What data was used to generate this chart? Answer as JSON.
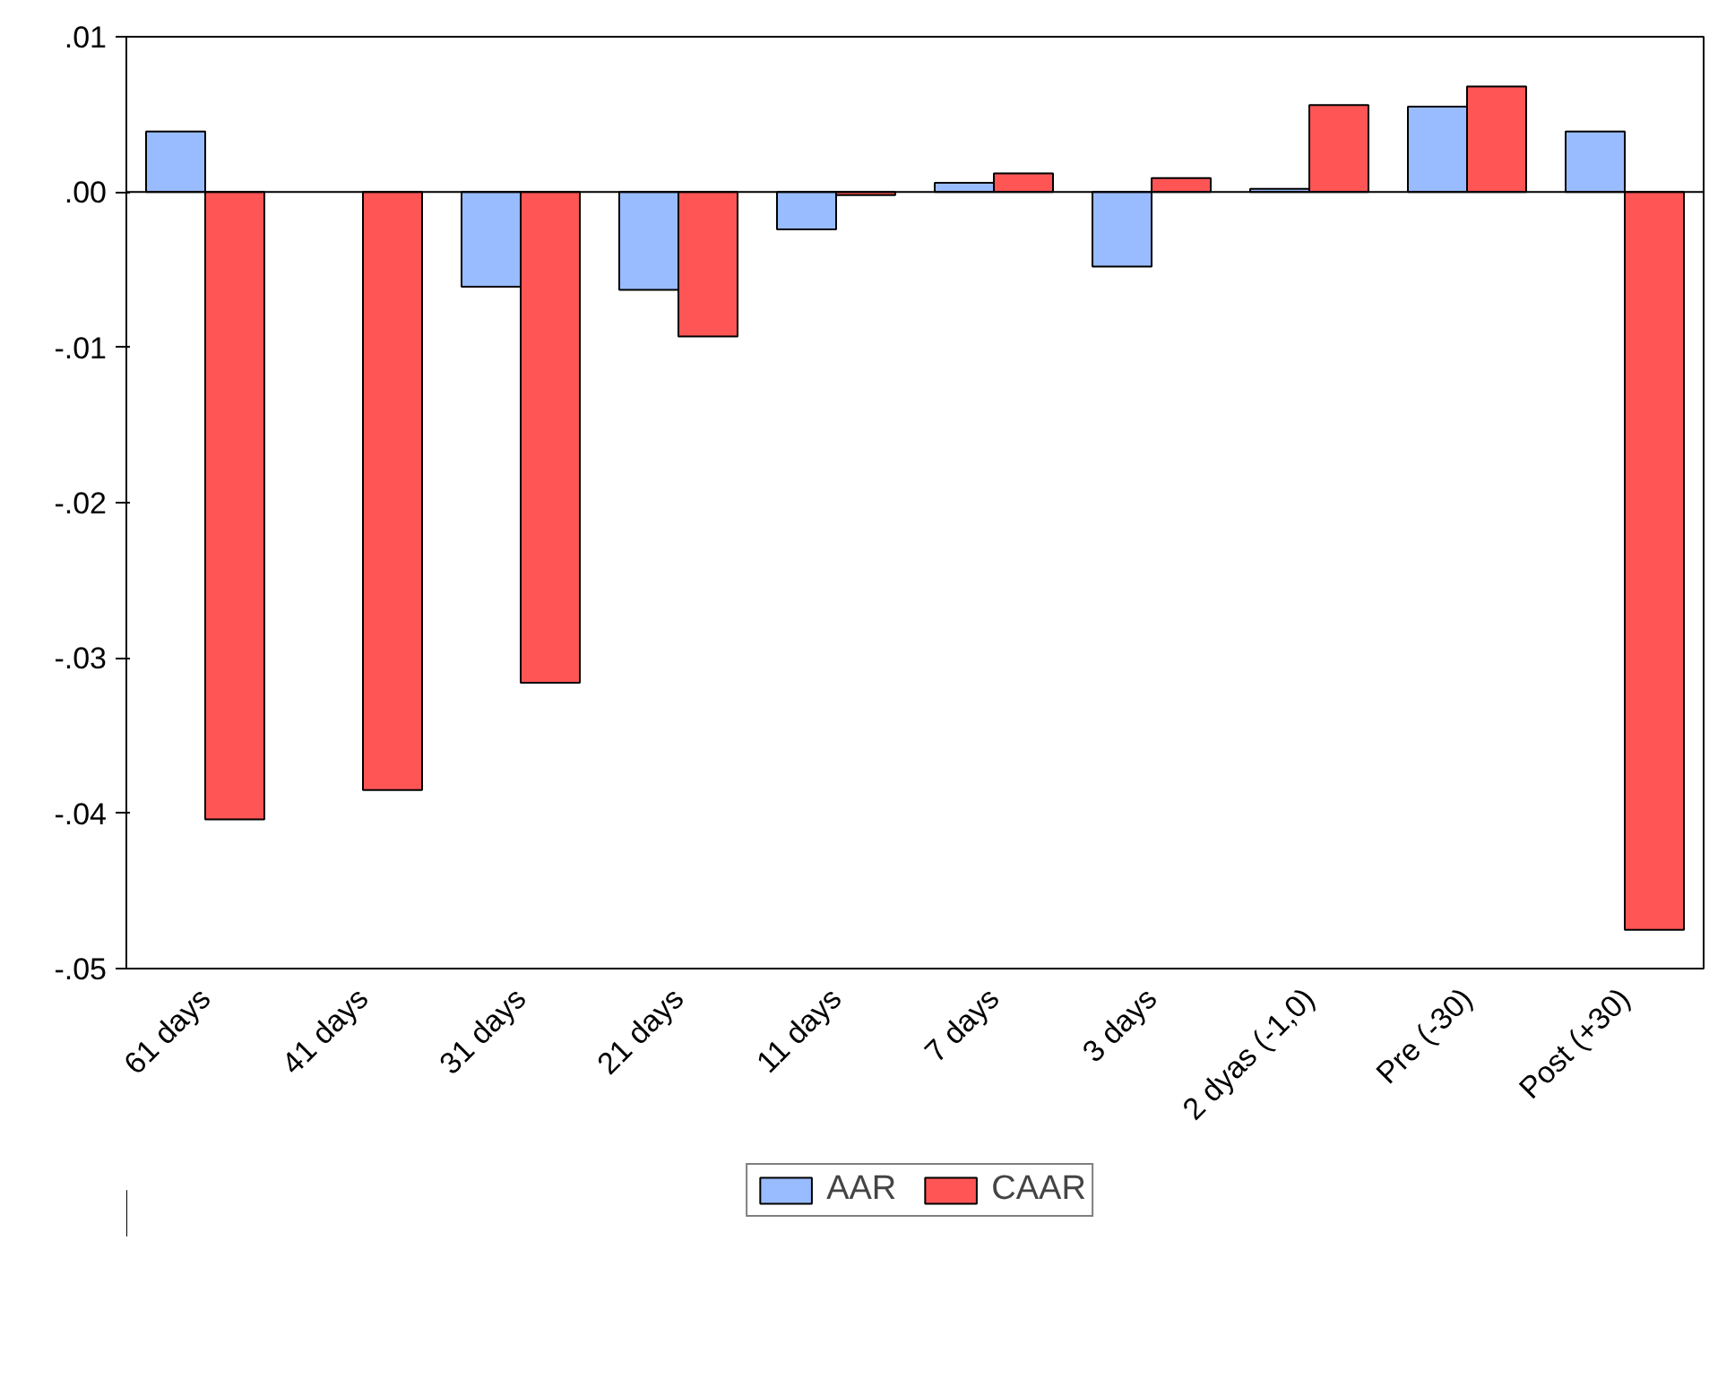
{
  "chart_data": {
    "type": "bar",
    "categories": [
      "61 days",
      "41 days",
      "31 days",
      "21 days",
      "11 days",
      "7 days",
      "3 days",
      "2 dyas (-1,0)",
      "Pre (-30)",
      "Post (+30)"
    ],
    "series": [
      {
        "name": "AAR",
        "color": "#99bbff",
        "values": [
          0.0039,
          null,
          -0.0061,
          -0.0063,
          -0.0024,
          0.0006,
          -0.0048,
          0.0002,
          0.0055,
          0.0039
        ]
      },
      {
        "name": "CAAR",
        "color": "#ff5555",
        "values": [
          -0.0404,
          -0.0385,
          -0.0316,
          -0.0093,
          -0.0002,
          0.0012,
          0.0009,
          0.0056,
          0.0068,
          -0.0475
        ]
      }
    ],
    "ylim": [
      -0.05,
      0.01
    ],
    "yticks": [
      {
        "value": -0.05,
        "label": "-.05"
      },
      {
        "value": -0.04,
        "label": "-.04"
      },
      {
        "value": -0.03,
        "label": "-.03"
      },
      {
        "value": -0.02,
        "label": "-.02"
      },
      {
        "value": -0.01,
        "label": "-.01"
      },
      {
        "value": 0,
        "label": ".00"
      },
      {
        "value": 0.01,
        "label": ".01"
      }
    ],
    "ref_lines": [
      {
        "axis": "y",
        "value": 0,
        "color": "#000000"
      }
    ],
    "grid": false,
    "legend": "bottom"
  }
}
